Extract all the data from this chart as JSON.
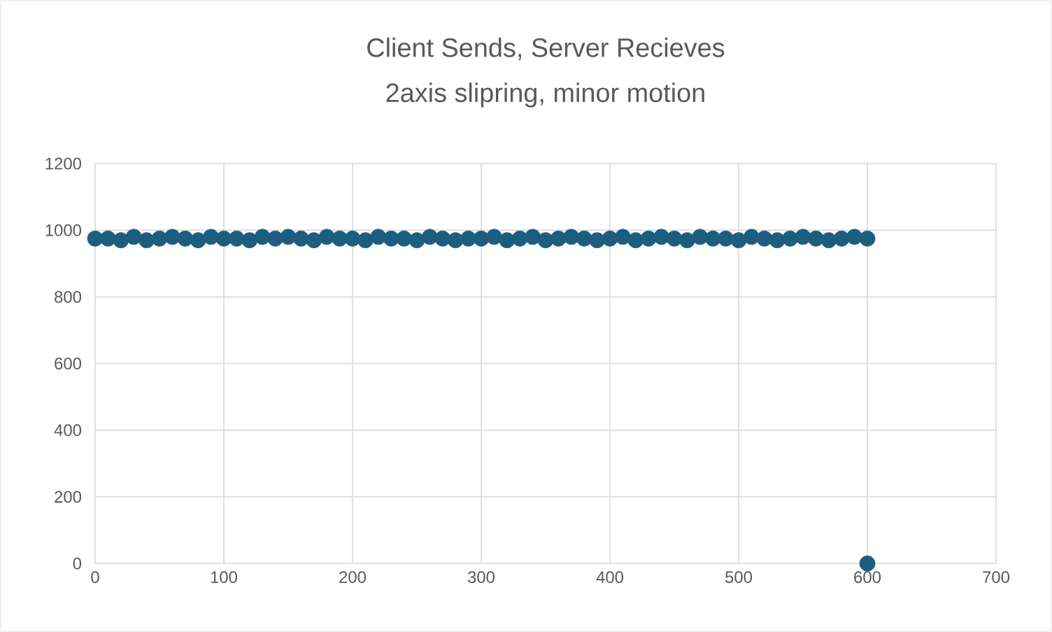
{
  "chart_data": {
    "type": "scatter",
    "title": "Client Sends, Server Recieves",
    "subtitle": "2axis slipring, minor motion",
    "x": [
      0,
      10,
      20,
      30,
      40,
      50,
      60,
      70,
      80,
      90,
      100,
      110,
      120,
      130,
      140,
      150,
      160,
      170,
      180,
      190,
      200,
      210,
      220,
      230,
      240,
      250,
      260,
      270,
      280,
      290,
      300,
      310,
      320,
      330,
      340,
      350,
      360,
      370,
      380,
      390,
      400,
      410,
      420,
      430,
      440,
      450,
      460,
      470,
      480,
      490,
      500,
      510,
      520,
      530,
      540,
      550,
      560,
      570,
      580,
      590,
      600,
      600
    ],
    "values": [
      975,
      975,
      970,
      980,
      970,
      975,
      980,
      975,
      970,
      980,
      975,
      975,
      970,
      980,
      975,
      980,
      975,
      970,
      980,
      975,
      975,
      970,
      980,
      975,
      975,
      970,
      980,
      975,
      970,
      975,
      975,
      980,
      970,
      975,
      980,
      970,
      975,
      980,
      975,
      970,
      975,
      980,
      970,
      975,
      980,
      975,
      970,
      980,
      975,
      975,
      970,
      980,
      975,
      970,
      975,
      980,
      975,
      970,
      975,
      980,
      975,
      0
    ],
    "color": "#1b5e7f",
    "marker": "circle",
    "grid": true,
    "xlim": [
      0,
      700
    ],
    "xticks": [
      0,
      100,
      200,
      300,
      400,
      500,
      600,
      700
    ],
    "ylim": [
      0,
      1200
    ],
    "yticks": [
      0,
      200,
      400,
      600,
      800,
      1000,
      1200
    ]
  }
}
